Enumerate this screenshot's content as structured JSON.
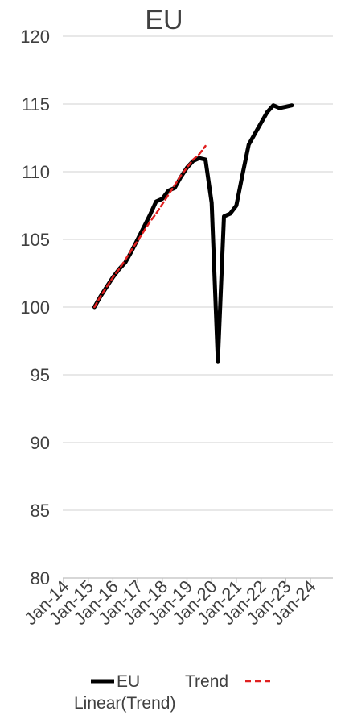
{
  "chart_data": {
    "type": "line",
    "title": "EU",
    "xlabel": "",
    "ylabel": "",
    "ylim": [
      80,
      120
    ],
    "yticks": [
      "120",
      "115",
      "110",
      "105",
      "100",
      "95",
      "90",
      "85",
      "80"
    ],
    "xticks": [
      "Jan-14",
      "Jan-15",
      "Jan-16",
      "Jan-17",
      "Jan-18",
      "Jan-19",
      "Jan-20",
      "Jan-21",
      "Jan-22",
      "Jan-23",
      "Jan-24"
    ],
    "grid": "horizontal",
    "legend_position": "bottom",
    "legend": [
      "EU",
      "Trend",
      "Linear(Trend)"
    ],
    "series": [
      {
        "name": "EU",
        "color": "#000000",
        "style": "solid",
        "points": [
          [
            "2015-04",
            100.0
          ],
          [
            "2015-07",
            100.8
          ],
          [
            "2015-10",
            101.5
          ],
          [
            "2016-01",
            102.2
          ],
          [
            "2016-04",
            102.8
          ],
          [
            "2016-07",
            103.3
          ],
          [
            "2016-10",
            104.1
          ],
          [
            "2017-01",
            105.0
          ],
          [
            "2017-04",
            105.9
          ],
          [
            "2017-07",
            106.8
          ],
          [
            "2017-10",
            107.8
          ],
          [
            "2018-01",
            108.0
          ],
          [
            "2018-04",
            108.6
          ],
          [
            "2018-07",
            108.8
          ],
          [
            "2018-10",
            109.6
          ],
          [
            "2019-01",
            110.3
          ],
          [
            "2019-04",
            110.8
          ],
          [
            "2019-07",
            111.0
          ],
          [
            "2019-10",
            110.9
          ],
          [
            "2020-01",
            107.7
          ],
          [
            "2020-04",
            96.0
          ],
          [
            "2020-07",
            106.7
          ],
          [
            "2020-10",
            106.9
          ],
          [
            "2021-01",
            107.5
          ],
          [
            "2021-04",
            109.8
          ],
          [
            "2021-07",
            112.0
          ],
          [
            "2021-10",
            112.8
          ],
          [
            "2022-01",
            113.6
          ],
          [
            "2022-04",
            114.4
          ],
          [
            "2022-07",
            114.9
          ],
          [
            "2022-10",
            114.7
          ],
          [
            "2023-01",
            114.8
          ],
          [
            "2023-04",
            114.9
          ]
        ]
      },
      {
        "name": "Linear(Trend)",
        "color": "#e02020",
        "style": "dashed",
        "points": [
          [
            "2015-04",
            100.0
          ],
          [
            "2015-07",
            100.8
          ],
          [
            "2015-10",
            101.5
          ],
          [
            "2016-01",
            102.2
          ],
          [
            "2016-04",
            102.8
          ],
          [
            "2016-07",
            103.5
          ],
          [
            "2016-10",
            104.2
          ],
          [
            "2017-01",
            104.9
          ],
          [
            "2017-04",
            105.6
          ],
          [
            "2017-07",
            106.3
          ],
          [
            "2017-10",
            106.9
          ],
          [
            "2018-01",
            107.6
          ],
          [
            "2018-04",
            108.3
          ],
          [
            "2018-07",
            109.0
          ],
          [
            "2018-10",
            109.7
          ],
          [
            "2019-01",
            110.3
          ],
          [
            "2019-04",
            110.9
          ],
          [
            "2019-07",
            111.3
          ],
          [
            "2019-10",
            111.9
          ]
        ]
      }
    ]
  }
}
